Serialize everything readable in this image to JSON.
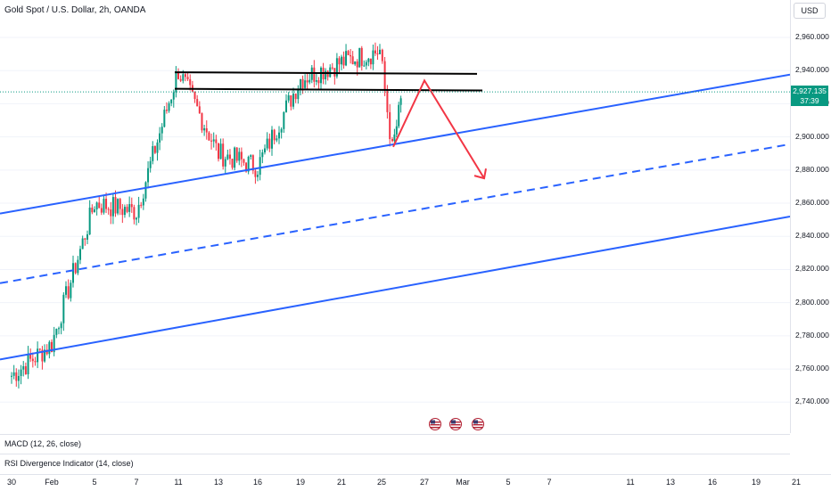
{
  "header": {
    "title": "Gold Spot / U.S. Dollar, 2h, OANDA",
    "currency": "USD"
  },
  "price_label": {
    "price": "2,927.135",
    "countdown": "37:39"
  },
  "indicators": {
    "macd": "MACD (12, 26, close)",
    "rsi": "RSI Divergence Indicator (14, close)"
  },
  "event_icons": [
    "us-flag-icon",
    "us-flag-icon",
    "us-flag-icon"
  ],
  "colors": {
    "up": "#089981",
    "down": "#f23645",
    "channel": "#2962ff",
    "resistance": "#000000",
    "projection": "#f23645",
    "price_line": "#089981"
  },
  "chart_data": {
    "type": "candlestick",
    "title": "Gold Spot / U.S. Dollar, 2h, OANDA",
    "ylim": [
      2740,
      2970
    ],
    "y_ticks": [
      "2,960.000",
      "2,940.000",
      "2,920.000",
      "2,900.000",
      "2,880.000",
      "2,860.000",
      "2,840.000",
      "2,820.000",
      "2,800.000",
      "2,780.000",
      "2,760.000",
      "2,740.000"
    ],
    "x_ticks": [
      "30",
      "Feb",
      "5",
      "7",
      "11",
      "13",
      "16",
      "19",
      "21",
      "25",
      "27",
      "Mar",
      "5",
      "7",
      "11",
      "13",
      "16",
      "19",
      "21"
    ],
    "last_price": 2927.135,
    "price_path": [
      [
        "30",
        2756
      ],
      [
        "Feb",
        2775
      ],
      [
        "5",
        2860
      ],
      [
        "7",
        2855
      ],
      [
        "11",
        2940
      ],
      [
        "13",
        2890
      ],
      [
        "16",
        2882
      ],
      [
        "19",
        2935
      ],
      [
        "21",
        2945
      ],
      [
        "25",
        2952
      ],
      [
        "25",
        2892
      ],
      [
        "27",
        2928
      ]
    ],
    "annotations": {
      "channel_lower": [
        [
          "30",
          2767
        ],
        [
          "21",
          2803
        ]
      ],
      "channel_middle": [
        [
          "30",
          2813
        ],
        [
          "21",
          2848
        ]
      ],
      "channel_upper": [
        [
          "30",
          2855
        ],
        [
          "21",
          2890
        ]
      ],
      "resistance_upper": [
        [
          "11",
          2939
        ],
        [
          "27",
          2938
        ]
      ],
      "resistance_lower": [
        [
          "11",
          2929
        ],
        [
          "27",
          2928
        ]
      ],
      "projection": [
        [
          "25",
          2894
        ],
        [
          "27",
          2934
        ],
        [
          "Mar",
          2875
        ]
      ]
    },
    "grid": true
  }
}
